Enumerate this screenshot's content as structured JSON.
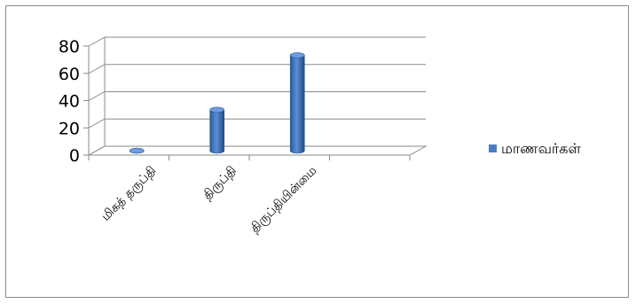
{
  "chart_data": {
    "type": "bar",
    "title": "",
    "xlabel": "",
    "ylabel": "",
    "categories": [
      "மிகத்  தருப்தி",
      "திருப்தி",
      "திருப்தியின்மை",
      ""
    ],
    "series": [
      {
        "name": "மாணவர்கள்",
        "values": [
          0,
          30,
          70,
          null
        ],
        "color": "#4a7ec2"
      }
    ],
    "ylim": [
      0,
      80
    ],
    "yticks": [
      "0",
      "20",
      "40",
      "60",
      "80"
    ],
    "grid": true,
    "style": "3d-cylinder",
    "legend_position": "right"
  }
}
